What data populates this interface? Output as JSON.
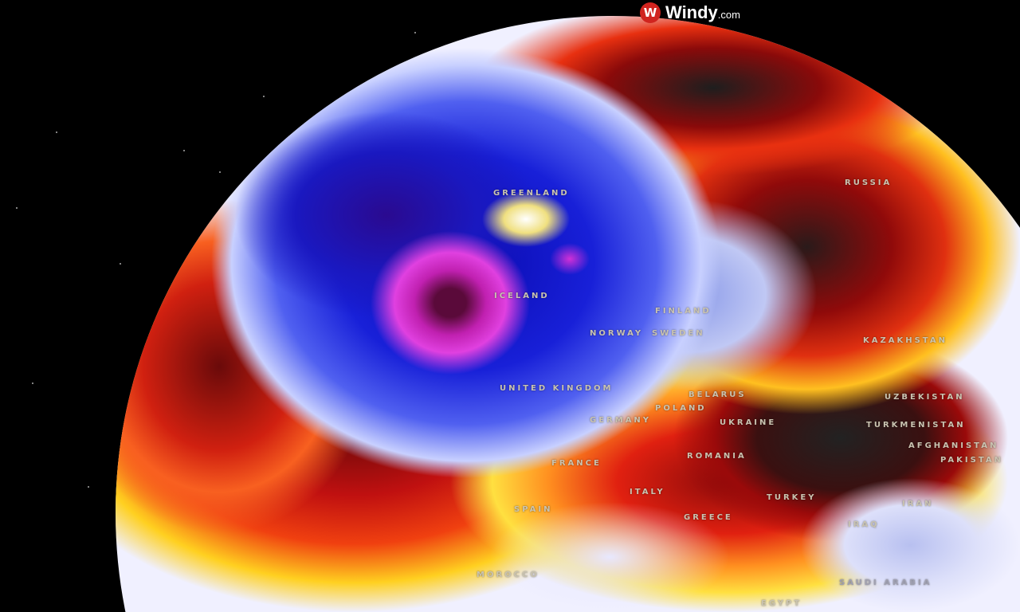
{
  "brand": {
    "logo_icon": "windy-logo-icon",
    "name": "Windy",
    "suffix": ".com"
  },
  "colors": {
    "cold": "#1a1ad0",
    "very_cold": "#d030d8",
    "warm": "#ffe020",
    "hot": "#e02010",
    "extreme": "#2a2a2a"
  },
  "labels": [
    {
      "id": "greenland",
      "text": "GREENLAND"
    },
    {
      "id": "russia",
      "text": "RUSSIA"
    },
    {
      "id": "iceland",
      "text": "ICELAND"
    },
    {
      "id": "finland",
      "text": "FINLAND"
    },
    {
      "id": "norway",
      "text": "NORWAY"
    },
    {
      "id": "sweden",
      "text": "SWEDEN"
    },
    {
      "id": "united-kingdom",
      "text": "UNITED KINGDOM"
    },
    {
      "id": "belarus",
      "text": "BELARUS"
    },
    {
      "id": "poland",
      "text": "POLAND"
    },
    {
      "id": "germany",
      "text": "GERMANY"
    },
    {
      "id": "ukraine",
      "text": "UKRAINE"
    },
    {
      "id": "kazakhstan",
      "text": "KAZAKHSTAN"
    },
    {
      "id": "uzbekistan",
      "text": "UZBEKISTAN"
    },
    {
      "id": "turkmenistan",
      "text": "TURKMENISTAN"
    },
    {
      "id": "afghanistan",
      "text": "AFGHANISTAN"
    },
    {
      "id": "pakistan",
      "text": "PAKISTAN"
    },
    {
      "id": "romania",
      "text": "ROMANIA"
    },
    {
      "id": "france",
      "text": "FRANCE"
    },
    {
      "id": "spain",
      "text": "SPAIN"
    },
    {
      "id": "italy",
      "text": "ITALY"
    },
    {
      "id": "greece",
      "text": "GREECE"
    },
    {
      "id": "turkey",
      "text": "TURKEY"
    },
    {
      "id": "iran",
      "text": "IRAN"
    },
    {
      "id": "iraq",
      "text": "IRAQ"
    },
    {
      "id": "morocco",
      "text": "MOROCCO"
    },
    {
      "id": "saudi-arabia",
      "text": "SAUDI ARABIA"
    },
    {
      "id": "egypt",
      "text": "EGYPT"
    }
  ]
}
